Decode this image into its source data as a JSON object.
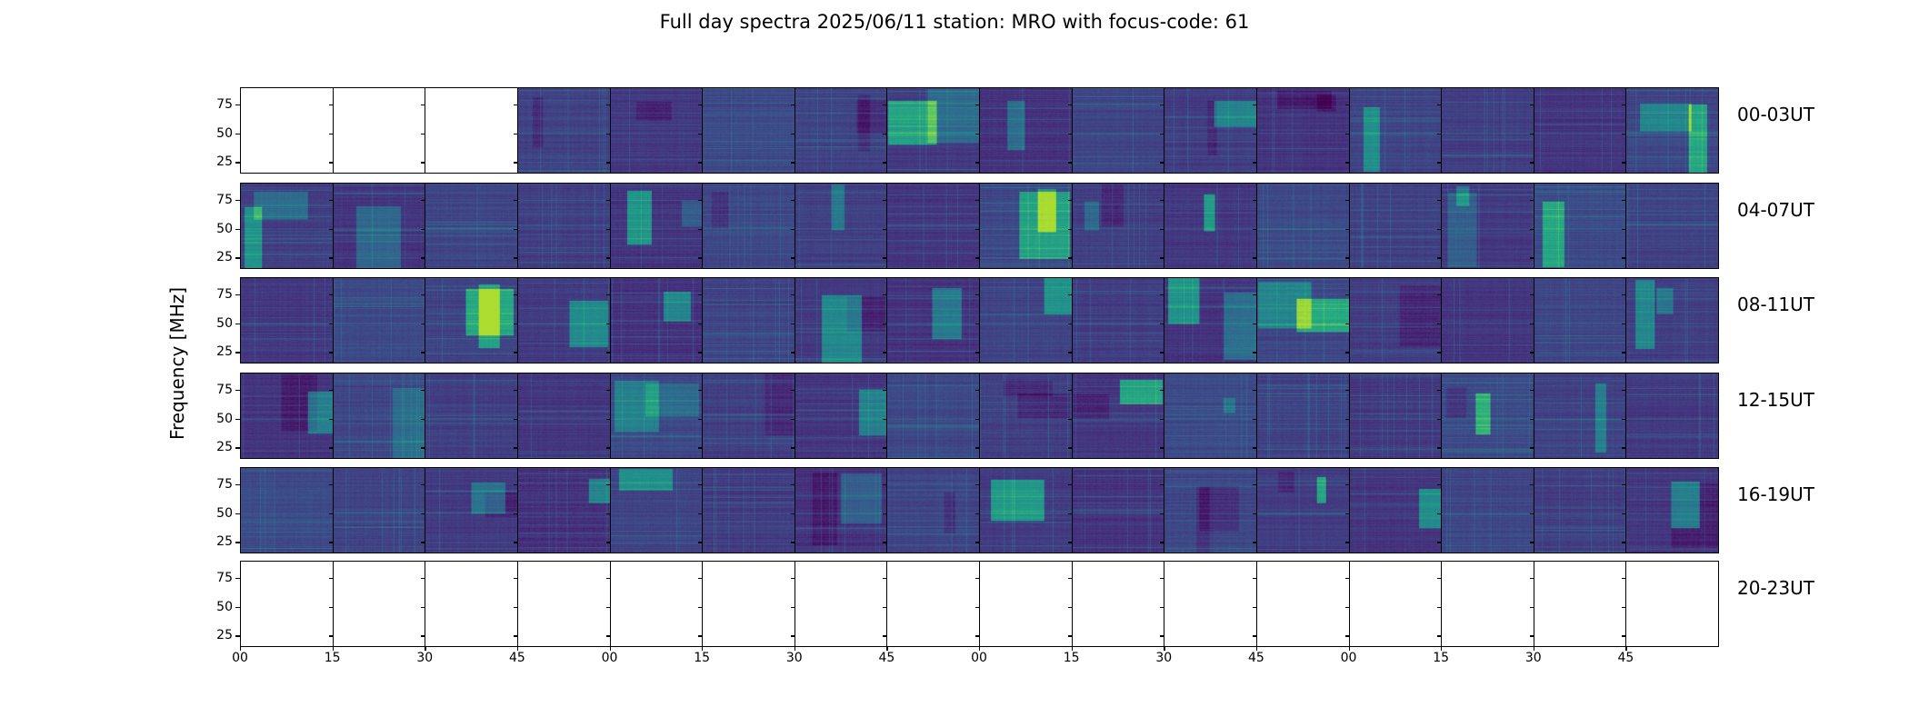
{
  "title": "Full day spectra 2025/06/11 station: MRO with focus-code: 61",
  "chart_data": {
    "type": "heatmap",
    "title": "Full day spectra 2025/06/11 station: MRO with focus-code: 61",
    "ylabel": "Frequency [MHz]",
    "xlabel": "",
    "ylim": [
      15,
      90
    ],
    "yticks": [
      25,
      50,
      75
    ],
    "xtick_labels": [
      "00",
      "15",
      "30",
      "45",
      "00",
      "15",
      "30",
      "45",
      "00",
      "15",
      "30",
      "45",
      "00",
      "15",
      "30",
      "45"
    ],
    "row_labels": [
      "00-03UT",
      "04-07UT",
      "08-11UT",
      "12-15UT",
      "16-19UT",
      "20-23UT"
    ],
    "panels_per_row": 16,
    "panel_minutes": 15,
    "empty_panels": {
      "00-03UT": [
        0,
        1,
        2
      ],
      "20-23UT": [
        0,
        1,
        2,
        3,
        4,
        5,
        6,
        7,
        8,
        9,
        10,
        11,
        12,
        13,
        14,
        15
      ]
    },
    "colormap": [
      "#440154",
      "#472d7b",
      "#3b528b",
      "#2c728e",
      "#21918c",
      "#28ae80",
      "#5ec962",
      "#addc30"
    ]
  }
}
